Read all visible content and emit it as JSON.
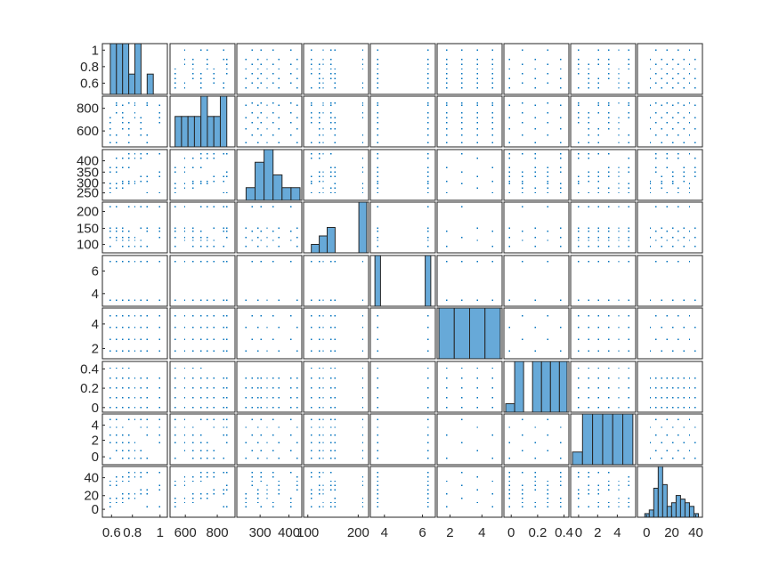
{
  "chart_data": {
    "type": "scatter",
    "subtype": "scatter-matrix (plotmatrix)",
    "title": "",
    "variables": 9,
    "diagonal": "histogram",
    "grid": false,
    "legend": "none",
    "colors": {
      "marker": "#0072bd",
      "histogram_fill": "#67a9d8",
      "axes": "#262626"
    },
    "ranges": [
      [
        0.55,
        1.05
      ],
      [
        480,
        860
      ],
      [
        225,
        430
      ],
      [
        85,
        240
      ],
      [
        3.0,
        7.4
      ],
      [
        1.5,
        5.5
      ],
      [
        -0.03,
        0.45
      ],
      [
        -0.6,
        5.5
      ],
      [
        -5,
        50
      ]
    ],
    "y_ticks": [
      [
        "1",
        "0.8",
        "0.6"
      ],
      [
        "800",
        "600"
      ],
      [
        "400",
        "350",
        "300",
        "250"
      ],
      [
        "200",
        "150",
        "100"
      ],
      [
        "6",
        "4"
      ],
      [
        "4",
        "2"
      ],
      [
        "0.4",
        "0.2",
        "0"
      ],
      [
        "4",
        "2",
        "0"
      ],
      [
        "40",
        "20",
        "0"
      ]
    ],
    "x_ticks": [
      [
        "0.6",
        "0.8",
        "1"
      ],
      [
        "600",
        "800"
      ],
      [
        "300",
        "400"
      ],
      [
        "100",
        "200"
      ],
      [
        "4",
        "6"
      ],
      [
        "2",
        "4"
      ],
      [
        "0",
        "0.2",
        "0.4"
      ],
      [
        "0",
        "2",
        "4"
      ],
      [
        "0",
        "20",
        "40"
      ]
    ],
    "variable_values": [
      [
        0.6,
        0.65,
        0.7,
        0.75,
        0.8,
        0.85,
        0.9,
        1.0
      ],
      [
        500,
        560,
        610,
        660,
        700,
        740,
        800,
        820
      ],
      [
        250,
        270,
        290,
        300,
        320,
        340,
        360,
        400,
        420
      ],
      [
        100,
        120,
        130,
        150,
        160,
        230
      ],
      [
        3.4,
        7.0
      ],
      [
        2,
        3,
        4,
        5
      ],
      [
        0,
        0.1,
        0.2,
        0.3,
        0.4
      ],
      [
        0,
        1,
        2,
        3,
        4,
        5
      ],
      [
        5,
        10,
        15,
        20,
        25,
        30,
        35,
        40,
        45
      ]
    ],
    "histograms": [
      {
        "bins": [
          0.6,
          0.65,
          0.7,
          0.75,
          0.8,
          0.85,
          0.9,
          0.95,
          1.0
        ],
        "counts": [
          10,
          10,
          10,
          4,
          10,
          0,
          4,
          0
        ]
      },
      {
        "bins": [
          500,
          540,
          580,
          620,
          660,
          700,
          740,
          780,
          820
        ],
        "counts": [
          3,
          3,
          3,
          3,
          5,
          3,
          3,
          5
        ]
      },
      {
        "bins": [
          250,
          280,
          310,
          340,
          370,
          400,
          430
        ],
        "counts": [
          1,
          3,
          4,
          2,
          1,
          1
        ]
      },
      {
        "bins": [
          100,
          120,
          140,
          160,
          180,
          200,
          220,
          240
        ],
        "counts": [
          1,
          2,
          3,
          0,
          0,
          0,
          6
        ]
      },
      {
        "bins": [
          3.2,
          3.6,
          4.0,
          4.4,
          4.8,
          5.2,
          5.6,
          6.0,
          6.4,
          6.8,
          7.2
        ],
        "counts": [
          1,
          0,
          0,
          0,
          0,
          0,
          0,
          0,
          0,
          1
        ]
      },
      {
        "bins": [
          1.5,
          2.5,
          3.5,
          4.5,
          5.5
        ],
        "counts": [
          1,
          1,
          1,
          1
        ]
      },
      {
        "bins": [
          -0.03,
          0.04,
          0.11,
          0.18,
          0.25,
          0.32,
          0.39,
          0.45
        ],
        "counts": [
          1,
          6,
          0,
          6,
          6,
          6,
          6
        ]
      },
      {
        "bins": [
          -0.6,
          0.4,
          1.4,
          2.4,
          3.4,
          4.4,
          5.4
        ],
        "counts": [
          1,
          4,
          4,
          4,
          4,
          4
        ]
      },
      {
        "bins": [
          0,
          4,
          8,
          12,
          16,
          20,
          24,
          28,
          32,
          36,
          40,
          44,
          48
        ],
        "counts": [
          1,
          2,
          8,
          14,
          9,
          3,
          4,
          6,
          5,
          4,
          3,
          1
        ]
      }
    ]
  }
}
